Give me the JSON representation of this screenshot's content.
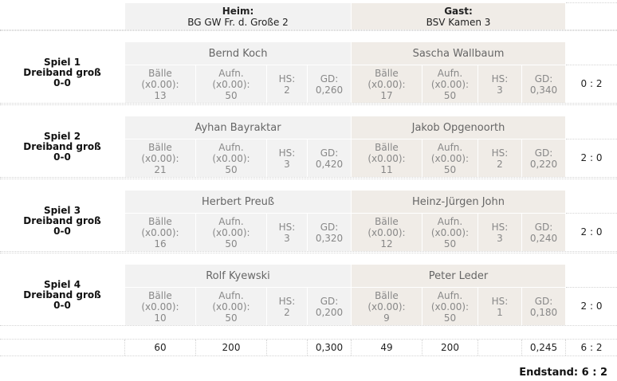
{
  "header": {
    "home_label": "Heim:",
    "home_team": "BG GW Fr. d. Große 2",
    "guest_label": "Gast:",
    "guest_team": "BSV Kamen 3"
  },
  "games": [
    {
      "title": "Spiel 1",
      "discipline": "Dreiband groß",
      "score": "0-0",
      "home": {
        "player": "Bernd Koch",
        "balls": "13",
        "innings": "50",
        "hs": "2",
        "gd": "0,260"
      },
      "guest": {
        "player": "Sascha Wallbaum",
        "balls": "17",
        "innings": "50",
        "hs": "3",
        "gd": "0,340"
      },
      "result": "0 : 2"
    },
    {
      "title": "Spiel 2",
      "discipline": "Dreiband groß",
      "score": "0-0",
      "home": {
        "player": "Ayhan Bayraktar",
        "balls": "21",
        "innings": "50",
        "hs": "3",
        "gd": "0,420"
      },
      "guest": {
        "player": "Jakob Opgenoorth",
        "balls": "11",
        "innings": "50",
        "hs": "2",
        "gd": "0,220"
      },
      "result": "2 : 0"
    },
    {
      "title": "Spiel 3",
      "discipline": "Dreiband groß",
      "score": "0-0",
      "home": {
        "player": "Herbert Preuß",
        "balls": "16",
        "innings": "50",
        "hs": "3",
        "gd": "0,320"
      },
      "guest": {
        "player": "Heinz-Jürgen John",
        "balls": "12",
        "innings": "50",
        "hs": "3",
        "gd": "0,240"
      },
      "result": "2 : 0"
    },
    {
      "title": "Spiel 4",
      "discipline": "Dreiband groß",
      "score": "0-0",
      "home": {
        "player": "Rolf Kyewski",
        "balls": "10",
        "innings": "50",
        "hs": "2",
        "gd": "0,200"
      },
      "guest": {
        "player": "Peter Leder",
        "balls": "9",
        "innings": "50",
        "hs": "1",
        "gd": "0,180"
      },
      "result": "2 : 0"
    }
  ],
  "stat_labels": {
    "balls_1": "Bälle",
    "balls_2": "(x0.00):",
    "innings_1": "Aufn.",
    "innings_2": "(x0.00):",
    "hs": "HS:",
    "gd": "GD:"
  },
  "totals": {
    "home_balls": "60",
    "home_innings": "200",
    "home_gd": "0,300",
    "guest_balls": "49",
    "guest_innings": "200",
    "guest_gd": "0,245",
    "result": "6 : 2"
  },
  "final": "Endstand: 6 : 2",
  "colors": {
    "home_bg": "#f2f2f2",
    "guest_bg": "#f0ece7"
  }
}
